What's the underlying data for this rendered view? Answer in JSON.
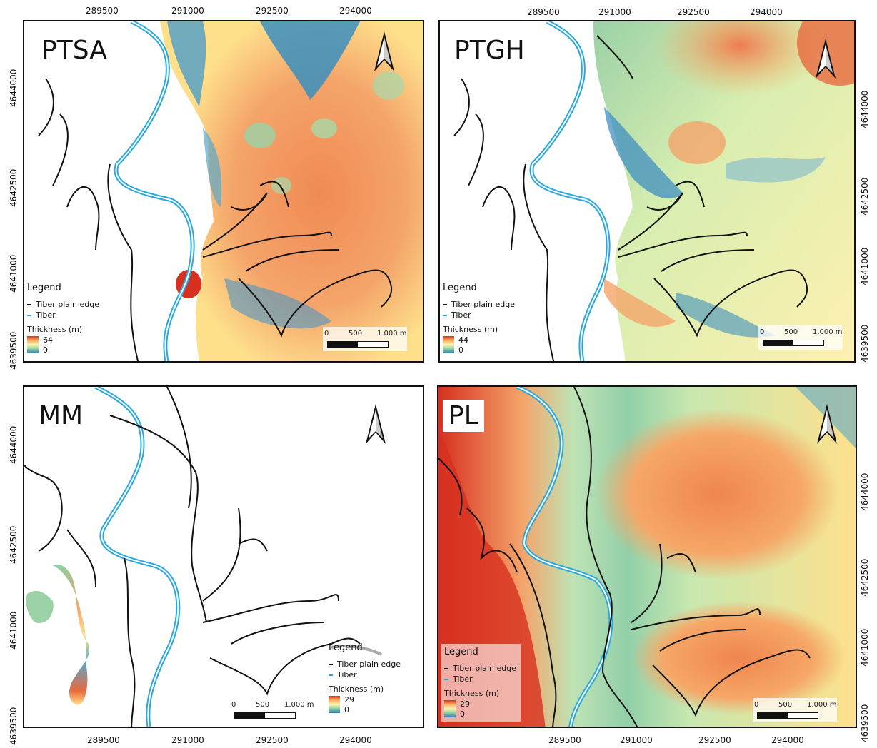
{
  "panels": [
    {
      "id": "ptsa",
      "title": "PTSA",
      "legend_title": "Legend",
      "plain_edge": "Tiber plain edge",
      "river": "Tiber",
      "thickness_label": "Thickness (m)",
      "max": "64",
      "min": "0"
    },
    {
      "id": "ptgh",
      "title": "PTGH",
      "legend_title": "Legend",
      "plain_edge": "Tiber plain edge",
      "river": "Tiber",
      "thickness_label": "Thickness (m)",
      "max": "44",
      "min": "0"
    },
    {
      "id": "mm",
      "title": "MM",
      "legend_title": "Legend",
      "plain_edge": "Tiber plain edge",
      "river": "Tiber",
      "thickness_label": "Thickness (m)",
      "max": "29",
      "min": "0"
    },
    {
      "id": "pl",
      "title": "PL",
      "legend_title": "Legend",
      "plain_edge": "Tiber plain edge",
      "river": "Tiber",
      "thickness_label": "Thickness (m)",
      "max": "29",
      "min": "0"
    }
  ],
  "scale": {
    "zero": "0",
    "mid": "500",
    "end": "1.000 m"
  },
  "x_ticks": [
    "289500",
    "291000",
    "292500",
    "294000"
  ],
  "y_ticks": [
    "4644000",
    "4642500",
    "4641000",
    "4639500"
  ],
  "colors": {
    "river": "#29a8e0",
    "edge": "#111111",
    "high": "#d7301f",
    "mid": "#fdae61",
    "low_mid": "#fff5b4",
    "low": "#2c7bb6"
  }
}
